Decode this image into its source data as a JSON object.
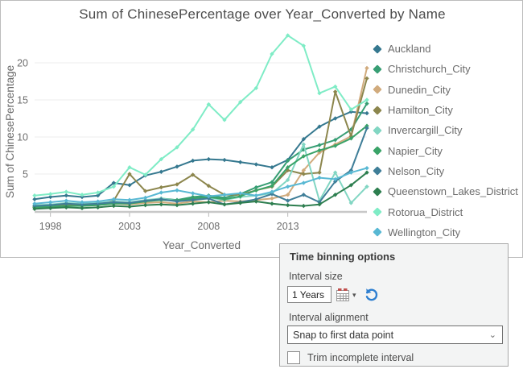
{
  "title": "Sum of ChinesePercentage over Year_Converted by Name",
  "chart_data": {
    "type": "line",
    "title": "Sum of ChinesePercentage over Year_Converted by Name",
    "xlabel": "Year_Converted",
    "ylabel": "Sum of ChinesePercentage",
    "x": [
      1997,
      1998,
      1999,
      2000,
      2001,
      2002,
      2003,
      2004,
      2005,
      2006,
      2007,
      2008,
      2009,
      2010,
      2011,
      2012,
      2013,
      2014,
      2015,
      2016,
      2017,
      2018
    ],
    "xlim": [
      1997,
      2018
    ],
    "ylim": [
      0,
      24.8
    ],
    "x_ticks": [
      1998,
      2003,
      2008,
      2013
    ],
    "y_ticks": [
      5,
      10,
      15,
      20
    ],
    "grid": "horizontal-only",
    "legend_position": "right",
    "marker": "diamond",
    "series": [
      {
        "name": "Auckland",
        "color": "#35788f",
        "values": [
          1.6,
          1.9,
          2.1,
          1.9,
          2.1,
          3.8,
          3.5,
          4.8,
          5.3,
          6.0,
          6.8,
          7.0,
          6.9,
          6.6,
          6.3,
          5.9,
          6.9,
          9.7,
          11.4,
          12.5,
          13.4,
          13.2
        ]
      },
      {
        "name": "Christchurch_City",
        "color": "#379e74",
        "values": [
          0.6,
          0.7,
          0.9,
          0.8,
          0.9,
          1.2,
          1.1,
          1.4,
          1.7,
          1.5,
          1.9,
          2.1,
          1.8,
          2.3,
          3.2,
          3.9,
          6.8,
          8.3,
          8.9,
          9.6,
          11.0,
          14.5
        ]
      },
      {
        "name": "Dunedin_City",
        "color": "#d1ab7d",
        "values": [
          0.6,
          0.7,
          0.8,
          0.7,
          0.8,
          1.0,
          0.9,
          1.1,
          1.2,
          1.0,
          1.3,
          1.2,
          1.4,
          1.3,
          1.5,
          1.7,
          2.2,
          5.5,
          7.9,
          9.0,
          10.1,
          19.3
        ]
      },
      {
        "name": "Hamilton_City",
        "color": "#8c864d",
        "values": [
          0.5,
          0.6,
          0.8,
          0.7,
          0.9,
          1.4,
          5.0,
          2.7,
          3.2,
          3.6,
          4.9,
          3.4,
          2.2,
          2.2,
          2.8,
          3.3,
          5.5,
          5.0,
          5.2,
          16.1,
          10.1,
          17.9
        ]
      },
      {
        "name": "Invercargill_City",
        "color": "#82d6c3",
        "values": [
          0.8,
          0.9,
          1.1,
          1.0,
          1.1,
          1.3,
          1.2,
          1.5,
          1.7,
          1.4,
          1.6,
          1.8,
          1.5,
          1.9,
          2.1,
          2.4,
          4.2,
          9.0,
          1.4,
          5.2,
          1.1,
          3.3
        ]
      },
      {
        "name": "Napier_City",
        "color": "#3aa368",
        "values": [
          0.5,
          0.6,
          0.7,
          0.7,
          0.8,
          1.0,
          1.0,
          1.3,
          1.5,
          1.4,
          1.7,
          1.9,
          1.6,
          2.0,
          2.8,
          3.4,
          5.9,
          7.4,
          8.2,
          8.8,
          9.8,
          11.5
        ]
      },
      {
        "name": "Nelson_City",
        "color": "#3f7e98",
        "values": [
          0.7,
          0.8,
          1.0,
          0.9,
          1.0,
          1.2,
          1.1,
          1.4,
          1.6,
          1.3,
          1.5,
          1.7,
          0.9,
          1.2,
          1.6,
          2.3,
          1.4,
          2.2,
          1.2,
          4.0,
          5.5,
          11.2
        ]
      },
      {
        "name": "Queenstown_Lakes_District",
        "color": "#2d7e4f",
        "values": [
          0.3,
          0.4,
          0.5,
          0.4,
          0.5,
          0.7,
          0.6,
          0.8,
          0.9,
          0.8,
          1.0,
          1.2,
          0.9,
          1.1,
          1.3,
          1.0,
          0.8,
          0.7,
          0.9,
          2.2,
          3.5,
          5.2
        ]
      },
      {
        "name": "Rotorua_District",
        "color": "#7fecc6",
        "values": [
          2.1,
          2.3,
          2.6,
          2.2,
          2.5,
          3.3,
          5.9,
          4.9,
          7.0,
          8.6,
          11.0,
          14.4,
          12.3,
          14.7,
          16.6,
          21.2,
          23.7,
          22.3,
          15.9,
          16.8,
          13.7,
          15.0
        ]
      },
      {
        "name": "Wellington_City",
        "color": "#58b8d3",
        "values": [
          1.0,
          1.2,
          1.4,
          1.2,
          1.3,
          1.6,
          1.5,
          1.8,
          2.5,
          2.8,
          2.4,
          2.0,
          2.2,
          2.4,
          2.1,
          2.6,
          3.3,
          3.8,
          4.5,
          4.3,
          5.2,
          5.8
        ]
      }
    ]
  },
  "panel": {
    "title": "Time binning options",
    "interval_size_label": "Interval size",
    "interval_size_value": "1 Years",
    "calendar_icon": "calendar-icon",
    "calendar_caret": "▾",
    "undo_icon": "undo-icon",
    "interval_alignment_label": "Interval alignment",
    "interval_alignment_value": "Snap to first data point",
    "dropdown_chevron": "⌄",
    "trim_checkbox_label": "Trim incomplete interval",
    "trim_checked": false
  },
  "colors": {
    "background": "#ffffff",
    "chart_border": "#bcbcbc",
    "grid": "#ececec",
    "axis_line": "#c8c8c8",
    "tick_text": "#6d6d6d",
    "title_text": "#4d4d4d",
    "legend_text": "#6b6b6b",
    "panel_bg": "#f3f4f4",
    "panel_border": "#a8a8a8",
    "undo_blue": "#2e7fd0",
    "calendar_red": "#c0504d"
  }
}
